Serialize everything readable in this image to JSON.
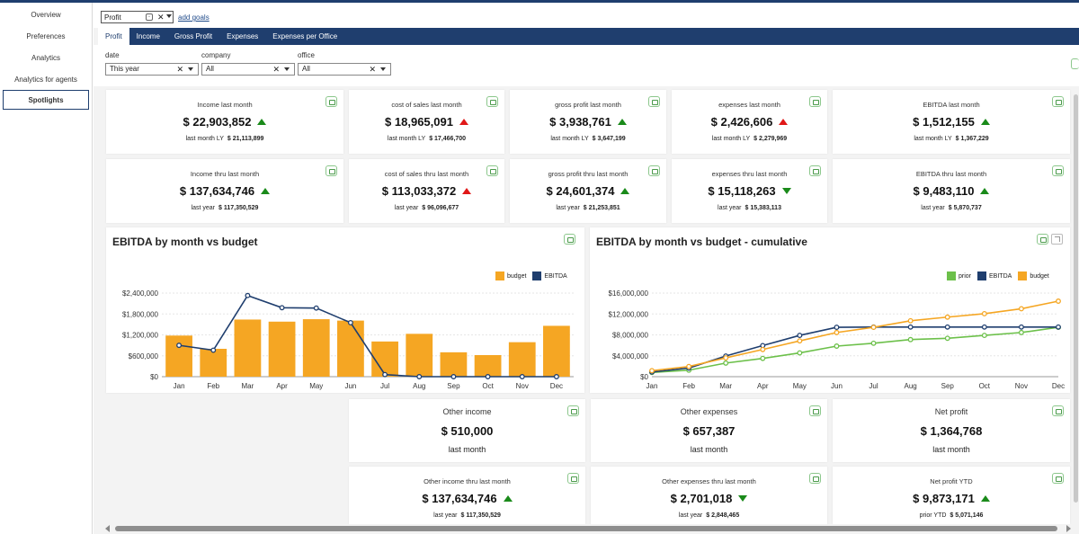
{
  "sidebar": {
    "items": [
      {
        "label": "Overview"
      },
      {
        "label": "Preferences"
      },
      {
        "label": "Analytics"
      },
      {
        "label": "Analytics for agents"
      },
      {
        "label": "Spotlights"
      }
    ]
  },
  "goals": {
    "selected": "Profit",
    "add_label": "add goals"
  },
  "tabs": [
    {
      "label": "Profit"
    },
    {
      "label": "Income"
    },
    {
      "label": "Gross Profit"
    },
    {
      "label": "Expenses"
    },
    {
      "label": "Expenses per Office"
    }
  ],
  "filters": [
    {
      "label": "date",
      "value": "This year"
    },
    {
      "label": "company",
      "value": "All"
    },
    {
      "label": "office",
      "value": "All"
    }
  ],
  "kpi_row1": [
    {
      "title": "Income last month",
      "value": "$ 22,903,852",
      "trend": "up",
      "trend_color": "#1a8a1a",
      "sub_label": "last month LY",
      "sub_value": "$ 21,113,899"
    },
    {
      "title": "cost of sales last month",
      "value": "$ 18,965,091",
      "trend": "up",
      "trend_color": "#e01818",
      "sub_label": "last month LY",
      "sub_value": "$ 17,466,700"
    },
    {
      "title": "gross profit last month",
      "value": "$ 3,938,761",
      "trend": "up",
      "trend_color": "#1a8a1a",
      "sub_label": "last month LY",
      "sub_value": "$ 3,647,199"
    },
    {
      "title": "expenses last month",
      "value": "$ 2,426,606",
      "trend": "up",
      "trend_color": "#e01818",
      "sub_label": "last month LY",
      "sub_value": "$ 2,279,969"
    },
    {
      "title": "EBITDA last month",
      "value": "$ 1,512,155",
      "trend": "up",
      "trend_color": "#1a8a1a",
      "sub_label": "last month LY",
      "sub_value": "$ 1,367,229"
    }
  ],
  "kpi_row2": [
    {
      "title": "Income thru last month",
      "value": "$ 137,634,746",
      "trend": "up",
      "trend_color": "#1a8a1a",
      "sub_label": "last year",
      "sub_value": "$ 117,350,529"
    },
    {
      "title": "cost of sales thru last month",
      "value": "$ 113,033,372",
      "trend": "up",
      "trend_color": "#e01818",
      "sub_label": "last year",
      "sub_value": "$ 96,096,677"
    },
    {
      "title": "gross profit thru last month",
      "value": "$ 24,601,374",
      "trend": "up",
      "trend_color": "#1a8a1a",
      "sub_label": "last year",
      "sub_value": "$ 21,253,851"
    },
    {
      "title": "expenses thru last month",
      "value": "$ 15,118,263",
      "trend": "down",
      "trend_color": "#1a8a1a",
      "sub_label": "last year",
      "sub_value": "$ 15,383,113"
    },
    {
      "title": "EBITDA thru last month",
      "value": "$ 9,483,110",
      "trend": "up",
      "trend_color": "#1a8a1a",
      "sub_label": "last year",
      "sub_value": "$ 5,870,737"
    }
  ],
  "colors": {
    "budget": "#f5a623",
    "ebitda": "#1f3e6e",
    "prior": "#6cc04a",
    "nav": "#1f3e6e"
  },
  "chart_data": [
    {
      "type": "bar",
      "title": "EBITDA by month vs budget",
      "categories": [
        "Jan",
        "Feb",
        "Mar",
        "Apr",
        "May",
        "Jun",
        "Jul",
        "Aug",
        "Sep",
        "Oct",
        "Nov",
        "Dec"
      ],
      "series": [
        {
          "name": "budget",
          "kind": "bar",
          "color": "#f5a623",
          "values": [
            1180000,
            800000,
            1640000,
            1580000,
            1650000,
            1610000,
            1010000,
            1230000,
            700000,
            620000,
            990000,
            1460000
          ]
        },
        {
          "name": "EBITDA",
          "kind": "line",
          "color": "#1f3e6e",
          "values": [
            900000,
            760000,
            2330000,
            1980000,
            1970000,
            1550000,
            60000,
            0,
            0,
            0,
            0,
            0
          ]
        }
      ],
      "yticks": [
        "$0",
        "$600,000",
        "$1,200,000",
        "$1,800,000",
        "$2,400,000"
      ],
      "ylim": [
        0,
        2400000
      ],
      "legend_position": "top-right",
      "grid": true
    },
    {
      "type": "line",
      "title": "EBITDA by month vs budget - cumulative",
      "categories": [
        "Jan",
        "Feb",
        "Mar",
        "Apr",
        "May",
        "Jun",
        "Jul",
        "Aug",
        "Sep",
        "Oct",
        "Nov",
        "Dec"
      ],
      "series": [
        {
          "name": "prior",
          "color": "#6cc04a",
          "values": [
            800000,
            1250000,
            2600000,
            3500000,
            4550000,
            5850000,
            6400000,
            7100000,
            7350000,
            7900000,
            8450000,
            9450000
          ]
        },
        {
          "name": "EBITDA",
          "color": "#1f3e6e",
          "values": [
            900000,
            1650000,
            3950000,
            5950000,
            7900000,
            9450000,
            9500000,
            9500000,
            9500000,
            9500000,
            9500000,
            9500000
          ]
        },
        {
          "name": "budget",
          "color": "#f5a623",
          "values": [
            1150000,
            1950000,
            3600000,
            5200000,
            6850000,
            8450000,
            9450000,
            10700000,
            11400000,
            12050000,
            13000000,
            14450000
          ]
        }
      ],
      "yticks": [
        "$0",
        "$4,000,000",
        "$8,000,000",
        "$12,000,000",
        "$16,000,000"
      ],
      "ylim": [
        0,
        16000000
      ],
      "legend_position": "top-right",
      "grid": true
    }
  ],
  "bottom_row1": [
    {
      "title": "Other income",
      "value": "$ 510,000",
      "sub": "last month"
    },
    {
      "title": "Other expenses",
      "value": "$ 657,387",
      "sub": "last month"
    },
    {
      "title": "Net profit",
      "value": "$ 1,364,768",
      "sub": "last month"
    }
  ],
  "bottom_row2": [
    {
      "title": "Other income thru last month",
      "value": "$ 137,634,746",
      "trend": "up",
      "trend_color": "#1a8a1a",
      "sub_label": "last year",
      "sub_value": "$ 117,350,529"
    },
    {
      "title": "Other expenses thru last month",
      "value": "$ 2,701,018",
      "trend": "down",
      "trend_color": "#1a8a1a",
      "sub_label": "last year",
      "sub_value": "$ 2,848,465"
    },
    {
      "title": "Net profit YTD",
      "value": "$ 9,873,171",
      "trend": "up",
      "trend_color": "#1a8a1a",
      "sub_label": "prior YTD",
      "sub_value": "$ 5,071,146"
    }
  ]
}
